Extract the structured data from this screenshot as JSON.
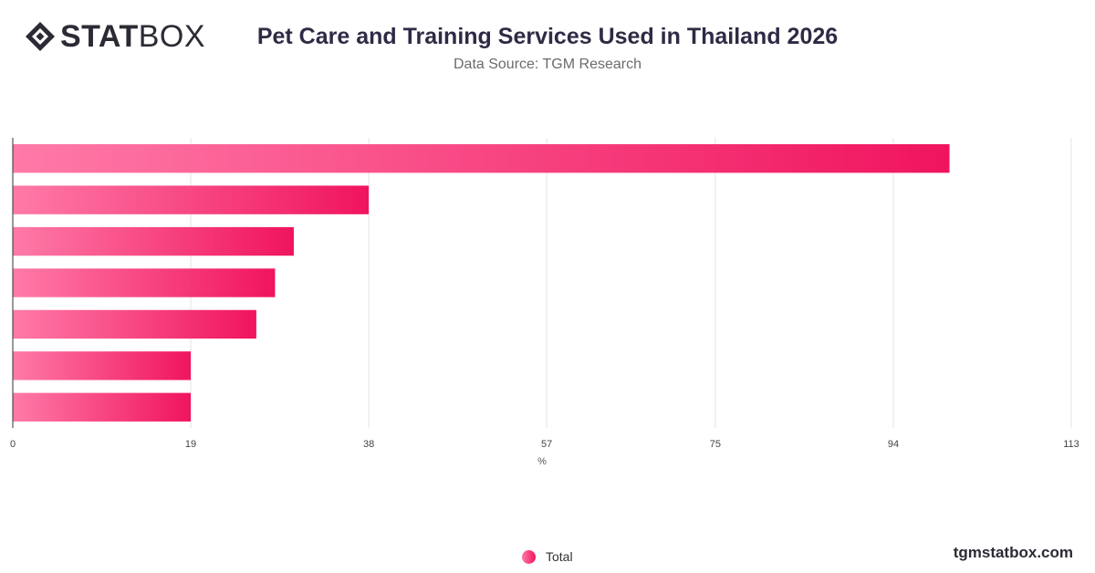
{
  "brand": {
    "logo_bold": "STAT",
    "logo_light": "BOX",
    "watermark": "tgmstatbox.com"
  },
  "header": {
    "title": "Pet Care and Training Services Used in Thailand 2026",
    "subtitle": "Data Source: TGM Research"
  },
  "chart_data": {
    "type": "bar",
    "orientation": "horizontal",
    "categories": [
      "",
      "",
      "",
      "",
      "",
      "",
      ""
    ],
    "series": [
      {
        "name": "Total",
        "values": [
          100,
          38,
          30,
          28,
          26,
          19,
          19
        ]
      }
    ],
    "xlim": [
      0,
      113
    ],
    "xticks": [
      "0",
      "19",
      "38",
      "57",
      "75",
      "94",
      "113"
    ],
    "xlabel": "%",
    "ylabel": "",
    "grid": true,
    "legend": "bottom-center",
    "colors": {
      "bar_start": "#ff7aa8",
      "bar_end": "#f0145f",
      "grid": "#e3e3e3",
      "axis": "#333333"
    }
  }
}
